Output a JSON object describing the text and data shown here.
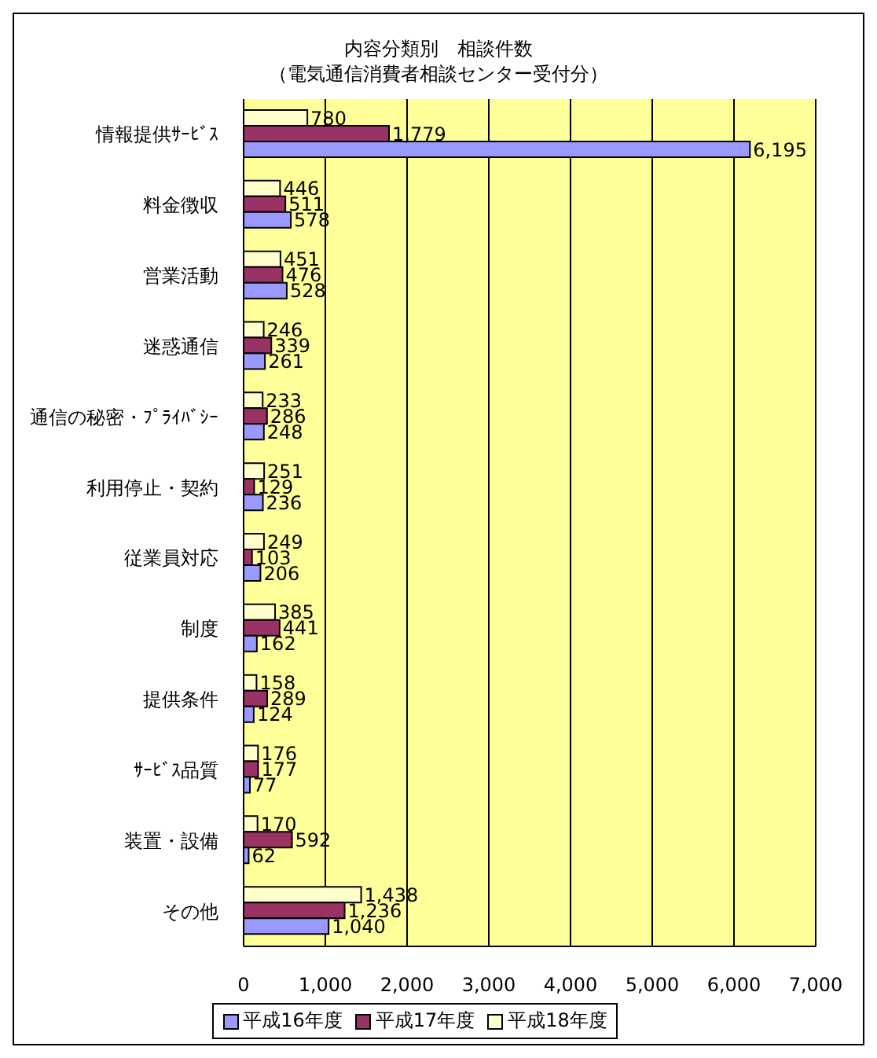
{
  "chart_data": {
    "type": "bar",
    "orientation": "horizontal",
    "title": "内容分類別　相談件数",
    "subtitle": "（電気通信消費者相談センター受付分）",
    "categories": [
      "情報提供ｻｰﾋﾞｽ",
      "料金徴収",
      "営業活動",
      "迷惑通信",
      "通信の秘密・ﾌﾟﾗｲﾊﾞｼｰ",
      "利用停止・契約",
      "従業員対応",
      "制度",
      "提供条件",
      "ｻｰﾋﾞｽ品質",
      "装置・設備",
      "その他"
    ],
    "series": [
      {
        "name": "平成16年度",
        "color": "#9999ff",
        "values": [
          6195,
          578,
          528,
          261,
          248,
          236,
          206,
          162,
          124,
          77,
          62,
          1040
        ],
        "value_labels": [
          "6,195",
          "578",
          "528",
          "261",
          "248",
          "236",
          "206",
          "162",
          "124",
          "77",
          "62",
          "1,040"
        ]
      },
      {
        "name": "平成17年度",
        "color": "#993366",
        "values": [
          1779,
          511,
          476,
          339,
          286,
          129,
          103,
          441,
          289,
          177,
          592,
          1236
        ],
        "value_labels": [
          "1,779",
          "511",
          "476",
          "339",
          "286",
          "129",
          "103",
          "441",
          "289",
          "177",
          "592",
          "1,236"
        ]
      },
      {
        "name": "平成18年度",
        "color": "#ffffcc",
        "values": [
          780,
          446,
          451,
          246,
          233,
          251,
          249,
          385,
          158,
          176,
          170,
          1438
        ],
        "value_labels": [
          "780",
          "446",
          "451",
          "246",
          "233",
          "251",
          "249",
          "385",
          "158",
          "176",
          "170",
          "1,438"
        ]
      }
    ],
    "xlim": [
      0,
      7000
    ],
    "xticks": [
      0,
      {
        "value": 1000,
        "label": "1,000"
      },
      {
        "value": 2000,
        "label": "2,000"
      },
      {
        "value": 3000,
        "label": "3,000"
      },
      {
        "value": 4000,
        "label": "4,000"
      },
      {
        "value": 5000,
        "label": "5,000"
      },
      {
        "value": 6000,
        "label": "6,000"
      },
      {
        "value": 7000,
        "label": "7,000"
      }
    ],
    "grid": "x",
    "legend": "bottom"
  }
}
